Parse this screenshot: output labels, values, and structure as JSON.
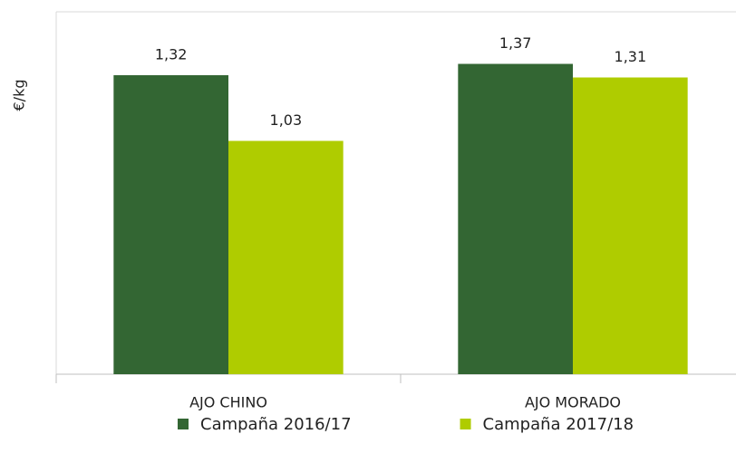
{
  "chart_data": {
    "type": "bar",
    "ylabel": "€/kg",
    "categories": [
      "AJO CHINO",
      "AJO MORADO"
    ],
    "series": [
      {
        "name": "Campaña 2016/17",
        "color": "#336633",
        "values": [
          1.32,
          1.37
        ],
        "value_labels": [
          "1,32",
          "1,37"
        ]
      },
      {
        "name": "Campaña 2017/18",
        "color": "#afcc00",
        "values": [
          1.03,
          1.31
        ],
        "value_labels": [
          "1,03",
          "1,31"
        ]
      }
    ],
    "ylim": [
      0,
      1.6
    ],
    "legend": "bottom"
  }
}
